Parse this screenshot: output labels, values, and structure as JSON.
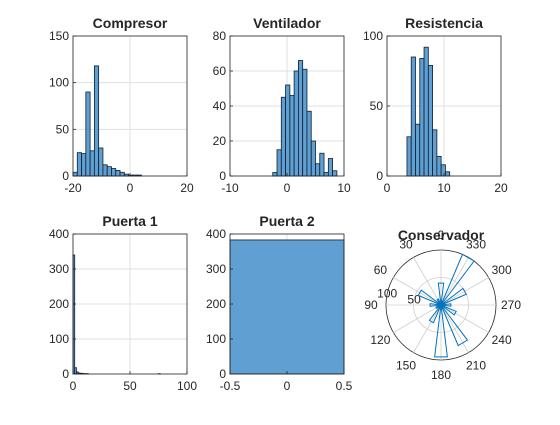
{
  "chart_data": [
    {
      "type": "bar",
      "title": "Compresor",
      "xlim": [
        -20,
        20
      ],
      "ylim": [
        0,
        150
      ],
      "xticks": [
        -20,
        0,
        20
      ],
      "yticks": [
        0,
        50,
        100,
        150
      ],
      "grid": true,
      "bin_edges": [
        -20,
        -18.5,
        -17,
        -15.5,
        -14,
        -12.5,
        -11,
        -9.5,
        -8,
        -6.5,
        -5,
        -3.5,
        -2,
        -0.5,
        1,
        2.5,
        4
      ],
      "counts": [
        4,
        25,
        24,
        90,
        27,
        118,
        30,
        12,
        10,
        8,
        6,
        4,
        2,
        1,
        1,
        1
      ]
    },
    {
      "type": "bar",
      "title": "Ventilador",
      "xlim": [
        -10,
        10
      ],
      "ylim": [
        0,
        80
      ],
      "xticks": [
        -10,
        0,
        10
      ],
      "yticks": [
        0,
        20,
        40,
        60,
        80
      ],
      "grid": true,
      "bin_edges": [
        -2.5,
        -1.75,
        -1,
        -0.25,
        0.5,
        1.25,
        2,
        2.75,
        3.5,
        4.25,
        5,
        5.75,
        6.5,
        7.25,
        8,
        8.75
      ],
      "counts": [
        2,
        15,
        45,
        52,
        46,
        60,
        66,
        61,
        37,
        20,
        7,
        13,
        2,
        10,
        3
      ]
    },
    {
      "type": "bar",
      "title": "Resistencia",
      "xlim": [
        0,
        20
      ],
      "ylim": [
        0,
        100
      ],
      "xticks": [
        0,
        10,
        20
      ],
      "yticks": [
        0,
        50,
        100
      ],
      "grid": true,
      "bin_edges": [
        3.5,
        4.25,
        5,
        5.75,
        6.5,
        7.25,
        8,
        8.75,
        9.5,
        10.25,
        11
      ],
      "counts": [
        28,
        85,
        37,
        84,
        92,
        79,
        33,
        14,
        8,
        3
      ]
    },
    {
      "type": "bar",
      "title": "Puerta 1",
      "xlim": [
        0,
        100
      ],
      "ylim": [
        0,
        400
      ],
      "xticks": [
        0,
        50,
        100
      ],
      "yticks": [
        0,
        100,
        200,
        300,
        400
      ],
      "grid": true,
      "bin_edges": [
        0,
        1.5,
        3,
        4.5,
        6,
        7.5,
        9,
        10.5,
        12,
        13.5,
        75,
        76.5
      ],
      "counts": [
        340,
        18,
        6,
        3,
        2,
        2,
        1,
        1,
        1,
        0,
        1
      ]
    },
    {
      "type": "bar",
      "title": "Puerta 2",
      "xlim": [
        -0.5,
        0.5
      ],
      "ylim": [
        0,
        400
      ],
      "xticks": [
        -0.5,
        0,
        0.5
      ],
      "yticks": [
        0,
        100,
        200,
        300,
        400
      ],
      "grid": true,
      "bin_edges": [
        -0.5,
        0.5
      ],
      "counts": [
        383
      ]
    },
    {
      "type": "polar_histogram",
      "title": "Conservador",
      "angle_ticks": [
        "0",
        "30",
        "60",
        "90",
        "120",
        "150",
        "180",
        "210",
        "240",
        "270",
        "300",
        "330"
      ],
      "r_ticks": [
        "50",
        "100"
      ],
      "rmax": 100,
      "bin_centers_deg": [
        0,
        30,
        60,
        90,
        120,
        150,
        180,
        210,
        240,
        270,
        300,
        330
      ],
      "counts": [
        40,
        12,
        45,
        20,
        10,
        35,
        95,
        80,
        30,
        18,
        50,
        100
      ]
    }
  ]
}
